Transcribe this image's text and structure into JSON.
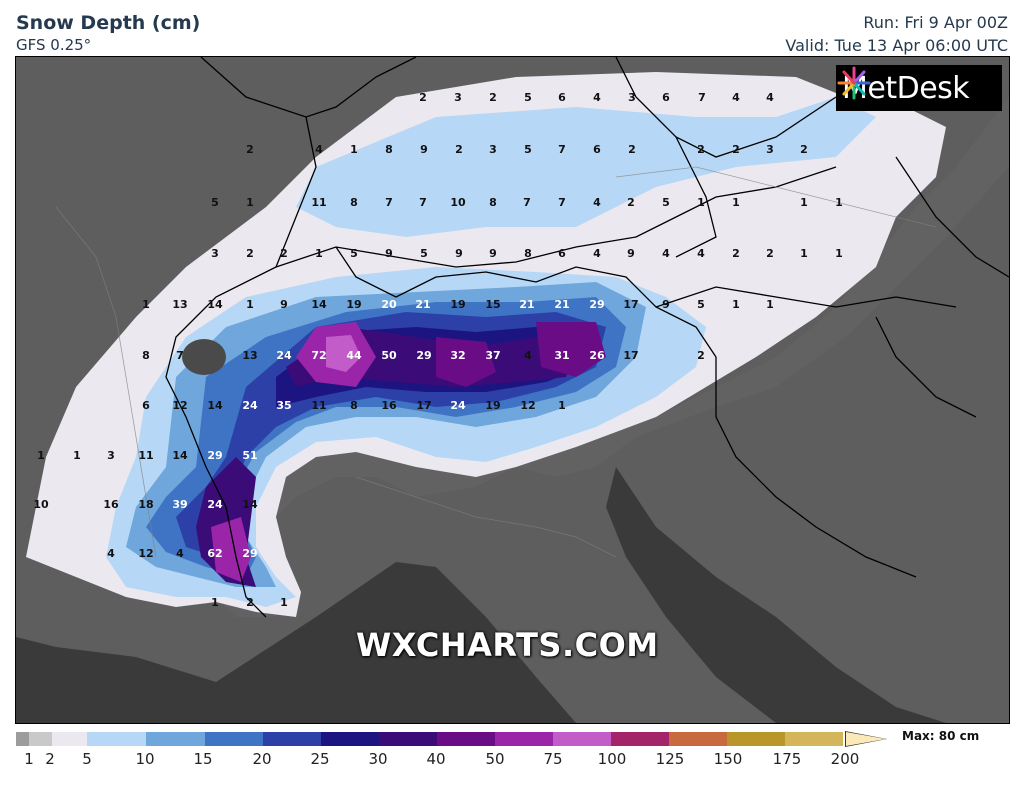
{
  "header": {
    "title": "Snow Depth (cm)",
    "model": "GFS 0.25°",
    "run": "Run: Fri 9 Apr 00Z",
    "valid": "Valid: Tue 13 Apr 06:00 UTC"
  },
  "logo": {
    "text": "MetDesk",
    "icon": "metdesk-starburst-icon"
  },
  "watermark": "WXCHARTS.COM",
  "legend": {
    "max_label": "Max: 80 cm",
    "ticks": [
      "1",
      "2",
      "5",
      "10",
      "15",
      "20",
      "25",
      "30",
      "40",
      "50",
      "75",
      "100",
      "125",
      "150",
      "175",
      "200"
    ],
    "colors": [
      "#9c9c9c",
      "#c9c9c9",
      "#ece8f0",
      "#b6d8f6",
      "#6fa7dc",
      "#3f74c4",
      "#2c40a8",
      "#1c1480",
      "#3b0b78",
      "#6a0c86",
      "#9a25a8",
      "#c25cc8",
      "#a4246a",
      "#c86a3e",
      "#b8962a",
      "#d4b55a",
      "#fbe9b7"
    ]
  },
  "colors": {
    "sea": "#3a3a3a",
    "land": "#5e5e5e",
    "border": "#000000"
  },
  "values": [
    {
      "v": "2"
    },
    {
      "v": "3"
    },
    {
      "v": "2"
    },
    {
      "v": "5"
    },
    {
      "v": "6"
    },
    {
      "v": "4"
    },
    {
      "v": "3"
    },
    {
      "v": "6"
    },
    {
      "v": "7"
    },
    {
      "v": "4"
    },
    {
      "v": "4"
    },
    {
      "v": "2"
    },
    {
      "v": "4"
    },
    {
      "v": "1"
    },
    {
      "v": "8"
    },
    {
      "v": "9"
    },
    {
      "v": "2"
    },
    {
      "v": "3"
    },
    {
      "v": "5"
    },
    {
      "v": "7"
    },
    {
      "v": "6"
    },
    {
      "v": "2"
    },
    {
      "v": "2"
    },
    {
      "v": "2"
    },
    {
      "v": "3"
    },
    {
      "v": "2"
    },
    {
      "v": "5"
    },
    {
      "v": "1"
    },
    {
      "v": "11"
    },
    {
      "v": "8"
    },
    {
      "v": "7"
    },
    {
      "v": "7"
    },
    {
      "v": "10"
    },
    {
      "v": "8"
    },
    {
      "v": "7"
    },
    {
      "v": "7"
    },
    {
      "v": "4"
    },
    {
      "v": "2"
    },
    {
      "v": "5"
    },
    {
      "v": "1"
    },
    {
      "v": "1"
    },
    {
      "v": "1"
    },
    {
      "v": "1"
    },
    {
      "v": "3"
    },
    {
      "v": "2"
    },
    {
      "v": "2"
    },
    {
      "v": "1"
    },
    {
      "v": "5"
    },
    {
      "v": "9"
    },
    {
      "v": "5"
    },
    {
      "v": "9"
    },
    {
      "v": "9"
    },
    {
      "v": "8"
    },
    {
      "v": "6"
    },
    {
      "v": "4"
    },
    {
      "v": "9"
    },
    {
      "v": "4"
    },
    {
      "v": "4"
    },
    {
      "v": "2"
    },
    {
      "v": "2"
    },
    {
      "v": "1"
    },
    {
      "v": "1"
    },
    {
      "v": "1"
    },
    {
      "v": "13"
    },
    {
      "v": "14"
    },
    {
      "v": "1"
    },
    {
      "v": "9"
    },
    {
      "v": "14"
    },
    {
      "v": "19"
    },
    {
      "v": "20"
    },
    {
      "v": "21"
    },
    {
      "v": "19"
    },
    {
      "v": "15"
    },
    {
      "v": "21"
    },
    {
      "v": "21"
    },
    {
      "v": "29"
    },
    {
      "v": "17"
    },
    {
      "v": "9"
    },
    {
      "v": "5"
    },
    {
      "v": "1"
    },
    {
      "v": "1"
    },
    {
      "v": "8"
    },
    {
      "v": "7"
    },
    {
      "v": "13"
    },
    {
      "v": "24"
    },
    {
      "v": "72"
    },
    {
      "v": "44"
    },
    {
      "v": "50"
    },
    {
      "v": "29"
    },
    {
      "v": "32"
    },
    {
      "v": "37"
    },
    {
      "v": "4"
    },
    {
      "v": "31"
    },
    {
      "v": "26"
    },
    {
      "v": "17"
    },
    {
      "v": "2"
    },
    {
      "v": "6"
    },
    {
      "v": "12"
    },
    {
      "v": "14"
    },
    {
      "v": "24"
    },
    {
      "v": "35"
    },
    {
      "v": "11"
    },
    {
      "v": "8"
    },
    {
      "v": "16"
    },
    {
      "v": "17"
    },
    {
      "v": "24"
    },
    {
      "v": "19"
    },
    {
      "v": "12"
    },
    {
      "v": "1"
    },
    {
      "v": "1"
    },
    {
      "v": "1"
    },
    {
      "v": "3"
    },
    {
      "v": "11"
    },
    {
      "v": "14"
    },
    {
      "v": "29"
    },
    {
      "v": "51"
    },
    {
      "v": "10"
    },
    {
      "v": "16"
    },
    {
      "v": "18"
    },
    {
      "v": "39"
    },
    {
      "v": "24"
    },
    {
      "v": "14"
    },
    {
      "v": "4"
    },
    {
      "v": "12"
    },
    {
      "v": "4"
    },
    {
      "v": "62"
    },
    {
      "v": "29"
    },
    {
      "v": "1"
    },
    {
      "v": "2"
    },
    {
      "v": "1"
    }
  ]
}
